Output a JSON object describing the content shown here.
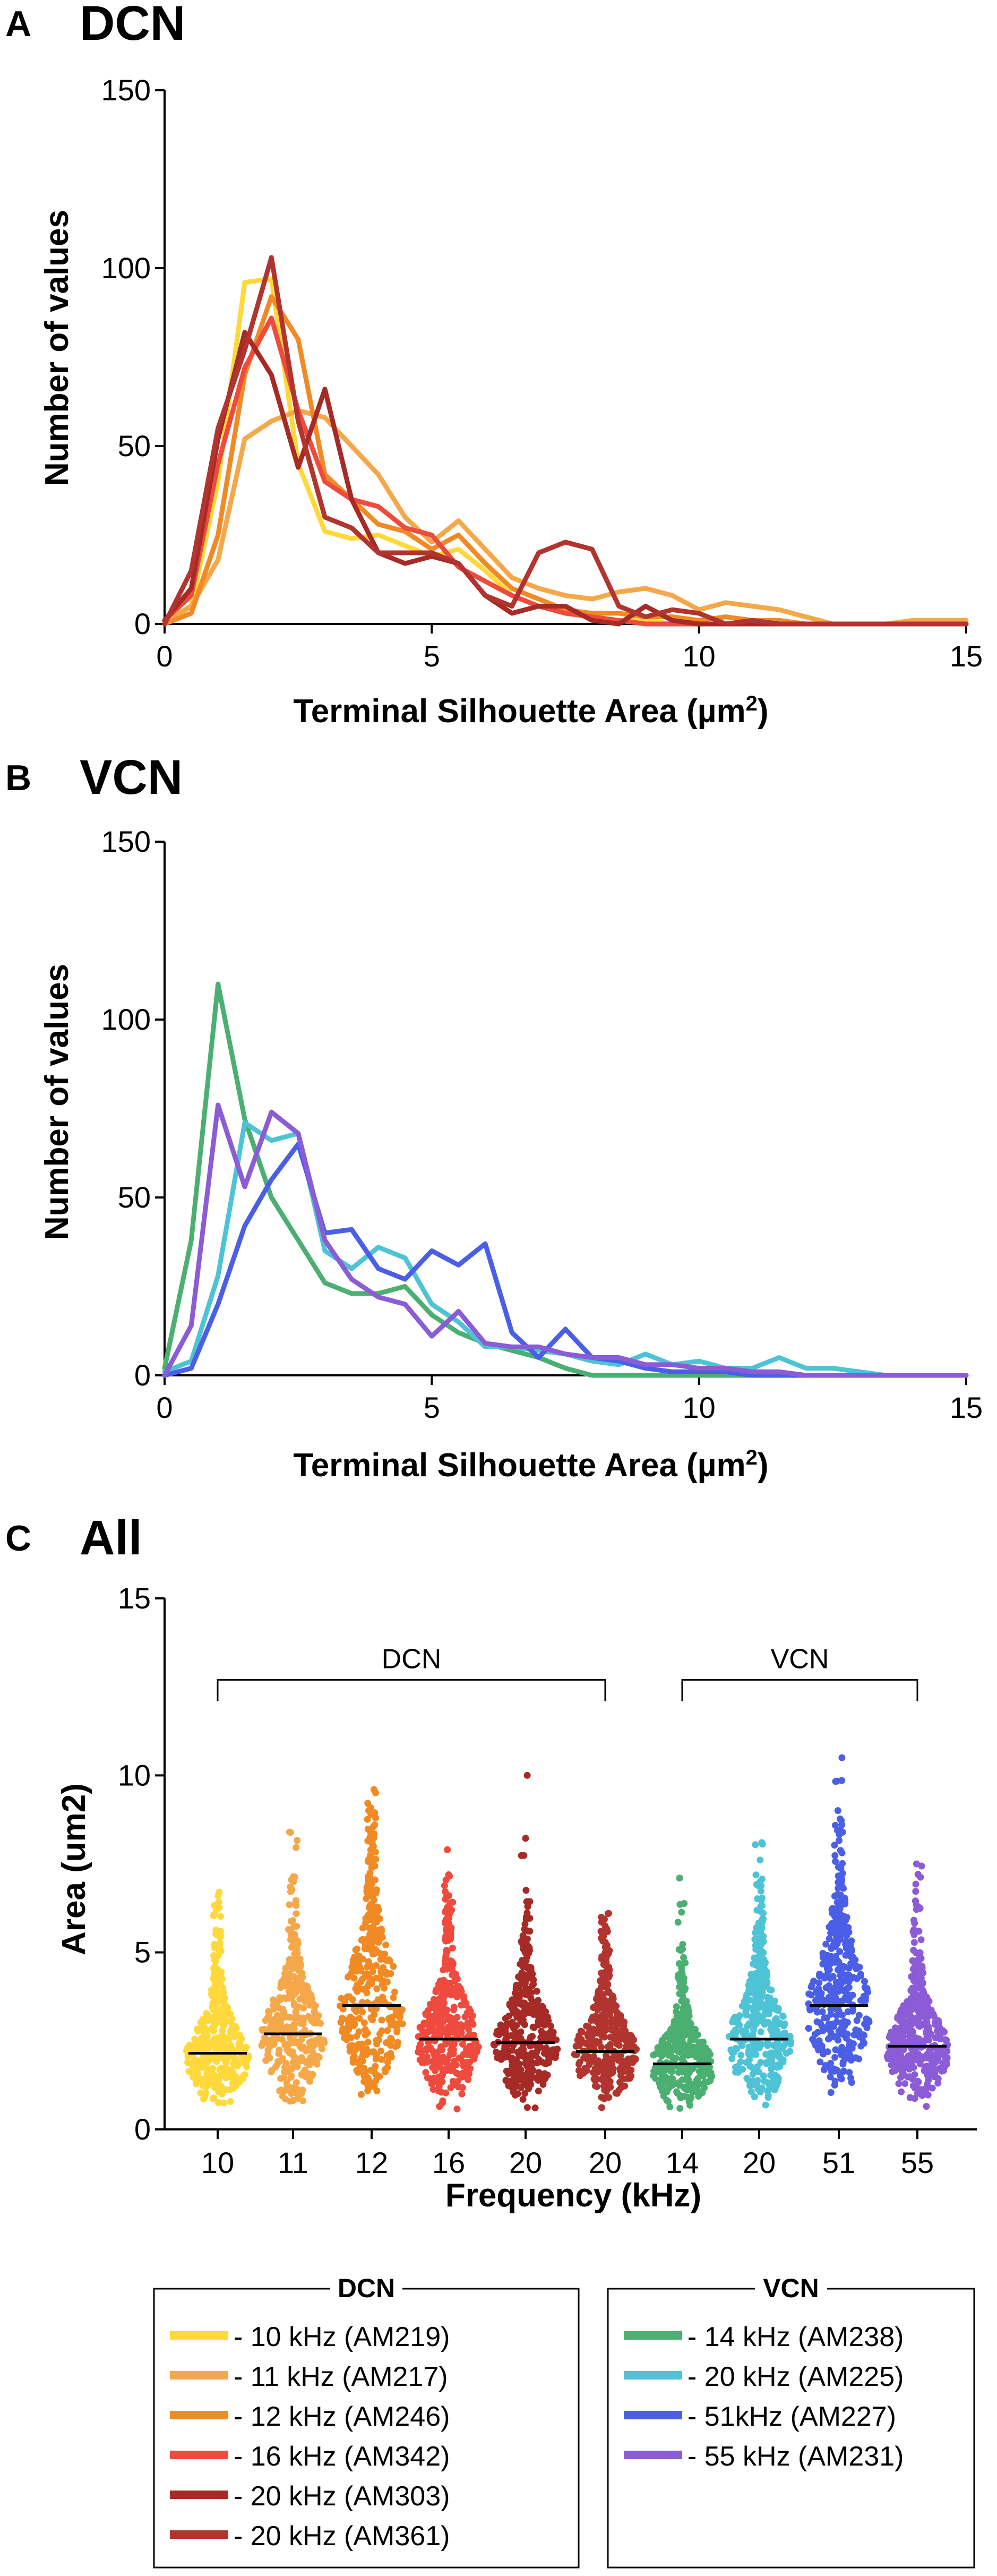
{
  "chart_data": [
    {
      "id": "A",
      "panel_label": "A",
      "title": "DCN",
      "type": "line",
      "xlabel": "Terminal Silhouette Area (µm",
      "xlabel_sup": "2",
      "xlabel_close": ")",
      "ylabel": "Number of values",
      "xlim": [
        0,
        15
      ],
      "ylim": [
        0,
        150
      ],
      "xticks": [
        0,
        5,
        10,
        15
      ],
      "yticks": [
        0,
        50,
        100,
        150
      ],
      "x": [
        0,
        0.5,
        1,
        1.5,
        2,
        2.5,
        3,
        3.5,
        4,
        4.5,
        5,
        5.5,
        6,
        6.5,
        7,
        7.5,
        8,
        8.5,
        9,
        9.5,
        10,
        10.5,
        11,
        11.5,
        12,
        12.5,
        13,
        13.5,
        14,
        14.5,
        15
      ],
      "series": [
        {
          "name": "10 kHz (AM219)",
          "color": "#FFD93B",
          "values": [
            1,
            5,
            40,
            96,
            97,
            45,
            26,
            24,
            25,
            22,
            19,
            21,
            15,
            8,
            5,
            3,
            2,
            1,
            1,
            0,
            0,
            0,
            0,
            0,
            0,
            0,
            0,
            0,
            0,
            0,
            0
          ]
        },
        {
          "name": "11 kHz (AM217)",
          "color": "#F5A84A",
          "values": [
            0,
            5,
            18,
            52,
            57,
            60,
            58,
            50,
            42,
            30,
            23,
            29,
            21,
            13,
            10,
            8,
            7,
            9,
            10,
            8,
            4,
            6,
            5,
            4,
            2,
            0,
            0,
            0,
            1,
            1,
            1
          ]
        },
        {
          "name": "12 kHz (AM246)",
          "color": "#F08A24",
          "values": [
            0,
            3,
            25,
            70,
            92,
            80,
            42,
            35,
            28,
            26,
            21,
            25,
            17,
            10,
            7,
            4,
            3,
            3,
            2,
            2,
            1,
            2,
            1,
            1,
            0,
            0,
            0,
            0,
            0,
            0,
            0
          ]
        },
        {
          "name": "16 kHz (AM342)",
          "color": "#EE4B3E",
          "values": [
            1,
            8,
            45,
            72,
            86,
            60,
            40,
            35,
            33,
            27,
            25,
            16,
            12,
            8,
            5,
            3,
            2,
            1,
            0,
            0,
            0,
            0,
            0,
            0,
            0,
            0,
            0,
            0,
            0,
            0,
            0
          ]
        },
        {
          "name": "20 kHz (AM303)",
          "color": "#A62A26",
          "values": [
            1,
            10,
            52,
            82,
            70,
            44,
            66,
            35,
            20,
            17,
            19,
            17,
            8,
            3,
            5,
            5,
            1,
            0,
            5,
            1,
            0,
            0,
            0,
            0,
            0,
            0,
            0,
            0,
            0,
            0,
            0
          ]
        },
        {
          "name": "20 kHz (AM361)",
          "color": "#B2342F",
          "values": [
            0,
            15,
            55,
            77,
            103,
            57,
            30,
            27,
            20,
            20,
            20,
            17,
            8,
            5,
            20,
            23,
            21,
            5,
            2,
            4,
            3,
            0,
            1,
            0,
            0,
            0,
            0,
            0,
            0,
            0,
            0
          ]
        }
      ]
    },
    {
      "id": "B",
      "panel_label": "B",
      "title": "VCN",
      "type": "line",
      "xlabel": "Terminal Silhouette Area (µm",
      "xlabel_sup": "2",
      "xlabel_close": ")",
      "ylabel": "Number of values",
      "xlim": [
        0,
        15
      ],
      "ylim": [
        0,
        150
      ],
      "xticks": [
        0,
        5,
        10,
        15
      ],
      "yticks": [
        0,
        50,
        100,
        150
      ],
      "x": [
        0,
        0.5,
        1,
        1.5,
        2,
        2.5,
        3,
        3.5,
        4,
        4.5,
        5,
        5.5,
        6,
        6.5,
        7,
        7.5,
        8,
        8.5,
        9,
        9.5,
        10,
        10.5,
        11,
        11.5,
        12,
        12.5,
        13,
        13.5,
        14,
        14.5,
        15
      ],
      "series": [
        {
          "name": "14 kHz (AM238)",
          "color": "#4CAF72",
          "values": [
            2,
            38,
            110,
            72,
            50,
            38,
            26,
            23,
            23,
            25,
            17,
            12,
            9,
            7,
            5,
            2,
            0,
            0,
            0,
            0,
            0,
            0,
            0,
            0,
            0,
            0,
            0,
            0,
            0,
            0,
            0
          ]
        },
        {
          "name": "20 kHz (AM225)",
          "color": "#4EC3D6",
          "values": [
            1,
            4,
            28,
            71,
            66,
            68,
            35,
            30,
            36,
            33,
            20,
            15,
            8,
            8,
            7,
            6,
            4,
            3,
            6,
            3,
            4,
            2,
            2,
            5,
            2,
            2,
            1,
            0,
            0,
            0,
            0
          ]
        },
        {
          "name": "51kHz (AM227)",
          "color": "#4B5FE6",
          "values": [
            0,
            2,
            20,
            42,
            55,
            65,
            40,
            41,
            30,
            27,
            35,
            31,
            37,
            12,
            5,
            13,
            5,
            4,
            2,
            1,
            1,
            1,
            0,
            0,
            0,
            0,
            0,
            0,
            0,
            0,
            0
          ]
        },
        {
          "name": "55 kHz (AM231)",
          "color": "#8B5CD6",
          "values": [
            0,
            14,
            76,
            53,
            74,
            68,
            38,
            27,
            22,
            20,
            11,
            18,
            9,
            8,
            8,
            6,
            5,
            5,
            3,
            3,
            2,
            2,
            1,
            1,
            0,
            0,
            0,
            0,
            0,
            0,
            0
          ]
        }
      ]
    },
    {
      "id": "C",
      "panel_label": "C",
      "title": "All",
      "type": "scatter",
      "xlabel": "Frequency (kHz)",
      "ylabel": "Area (um2)",
      "ylim": [
        0,
        15
      ],
      "yticks": [
        0,
        5,
        10,
        15
      ],
      "categories": [
        "10",
        "11",
        "12",
        "16",
        "20",
        "20",
        "14",
        "20",
        "51",
        "55"
      ],
      "medians": [
        2.15,
        2.7,
        3.5,
        2.55,
        2.45,
        2.2,
        1.85,
        2.55,
        3.5,
        2.35
      ],
      "maxima": [
        6.7,
        8.4,
        9.6,
        7.9,
        10.0,
        6.1,
        7.1,
        8.1,
        10.5,
        7.5
      ],
      "colors": [
        "#FFD93B",
        "#F5A84A",
        "#F08A24",
        "#EE4B3E",
        "#A62A26",
        "#B2342F",
        "#4CAF72",
        "#4EC3D6",
        "#4B5FE6",
        "#8B5CD6"
      ],
      "groups": [
        {
          "label": "DCN",
          "from": 0,
          "to": 5
        },
        {
          "label": "VCN",
          "from": 6,
          "to": 9
        }
      ]
    }
  ],
  "legends": [
    {
      "title": "DCN",
      "items": [
        {
          "label": "- 10 kHz (AM219)",
          "color": "#FFD93B"
        },
        {
          "label": "- 11 kHz (AM217)",
          "color": "#F5A84A"
        },
        {
          "label": "- 12 kHz (AM246)",
          "color": "#F08A24"
        },
        {
          "label": "- 16 kHz (AM342)",
          "color": "#EE4B3E"
        },
        {
          "label": "- 20 kHz (AM303)",
          "color": "#A62A26"
        },
        {
          "label": "- 20 kHz (AM361)",
          "color": "#B2342F"
        }
      ]
    },
    {
      "title": "VCN",
      "items": [
        {
          "label": "- 14 kHz (AM238)",
          "color": "#4CAF72"
        },
        {
          "label": "- 20 kHz (AM225)",
          "color": "#4EC3D6"
        },
        {
          "label": "- 51kHz (AM227)",
          "color": "#4B5FE6"
        },
        {
          "label": "- 55 kHz (AM231)",
          "color": "#8B5CD6"
        }
      ]
    }
  ]
}
